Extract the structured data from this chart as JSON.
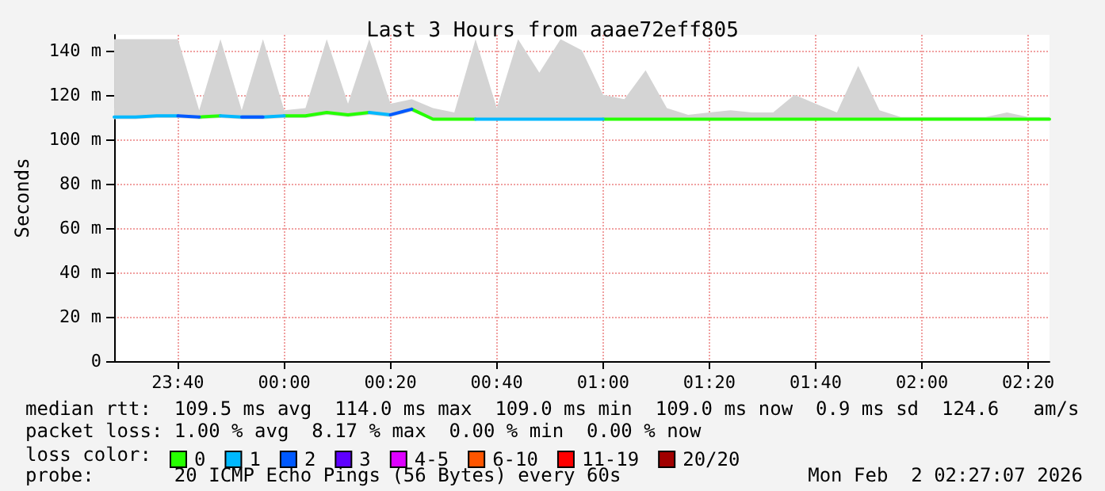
{
  "chart_data": {
    "type": "line",
    "title": "Last 3 Hours from aaae72eff805",
    "ylabel": "Seconds",
    "legend_title": "loss color:",
    "legend": "bottom",
    "grid": true,
    "marker": "none",
    "line_style": "solid",
    "x": [
      "2026-02-01T23:28",
      "2026-02-01T23:32",
      "2026-02-01T23:36",
      "2026-02-01T23:40",
      "2026-02-01T23:44",
      "2026-02-01T23:48",
      "2026-02-01T23:52",
      "2026-02-01T23:56",
      "2026-02-02T00:00",
      "2026-02-02T00:04",
      "2026-02-02T00:08",
      "2026-02-02T00:12",
      "2026-02-02T00:16",
      "2026-02-02T00:20",
      "2026-02-02T00:24",
      "2026-02-02T00:28",
      "2026-02-02T00:32",
      "2026-02-02T00:36",
      "2026-02-02T00:40",
      "2026-02-02T00:44",
      "2026-02-02T00:48",
      "2026-02-02T00:52",
      "2026-02-02T00:56",
      "2026-02-02T01:00",
      "2026-02-02T01:04",
      "2026-02-02T01:08",
      "2026-02-02T01:12",
      "2026-02-02T01:16",
      "2026-02-02T01:20",
      "2026-02-02T01:24",
      "2026-02-02T01:28",
      "2026-02-02T01:32",
      "2026-02-02T01:36",
      "2026-02-02T01:40",
      "2026-02-02T01:44",
      "2026-02-02T01:48",
      "2026-02-02T01:52",
      "2026-02-02T01:56",
      "2026-02-02T02:00",
      "2026-02-02T02:04",
      "2026-02-02T02:08",
      "2026-02-02T02:12",
      "2026-02-02T02:16",
      "2026-02-02T02:20",
      "2026-02-02T02:24"
    ],
    "xlim": [
      "2026-02-01T23:28",
      "2026-02-02T02:24"
    ],
    "xticks": [
      {
        "value": "2026-02-01T23:40",
        "label": "23:40"
      },
      {
        "value": "2026-02-02T00:00",
        "label": "00:00"
      },
      {
        "value": "2026-02-02T00:20",
        "label": "00:20"
      },
      {
        "value": "2026-02-02T00:40",
        "label": "00:40"
      },
      {
        "value": "2026-02-02T01:00",
        "label": "01:00"
      },
      {
        "value": "2026-02-02T01:20",
        "label": "01:20"
      },
      {
        "value": "2026-02-02T01:40",
        "label": "01:40"
      },
      {
        "value": "2026-02-02T02:00",
        "label": "02:00"
      },
      {
        "value": "2026-02-02T02:20",
        "label": "02:20"
      }
    ],
    "ylim": [
      0,
      147
    ],
    "yticks": [
      {
        "value": 0,
        "label": "0"
      },
      {
        "value": 20,
        "label": "20 m"
      },
      {
        "value": 40,
        "label": "40 m"
      },
      {
        "value": 60,
        "label": "60 m"
      },
      {
        "value": 80,
        "label": "80 m"
      },
      {
        "value": 100,
        "label": "100 m"
      },
      {
        "value": 120,
        "label": "120 m"
      },
      {
        "value": 140,
        "label": "140 m"
      }
    ],
    "series": [
      {
        "name": "0",
        "color": "#26ff00",
        "values": [
          null,
          null,
          null,
          null,
          110,
          110.5,
          null,
          null,
          110.5,
          110.5,
          112,
          111,
          112,
          null,
          113.5,
          109,
          109,
          109,
          null,
          null,
          null,
          null,
          null,
          109,
          109,
          109,
          109,
          109,
          109,
          109,
          109,
          109,
          109,
          109,
          109,
          109,
          109,
          109,
          109,
          109,
          109,
          109,
          109,
          109,
          109
        ],
        "lower": [
          109,
          109,
          109.5,
          109.5,
          109,
          109.5,
          109,
          109,
          109.5,
          109.5,
          111,
          110,
          111,
          110,
          112.5,
          108.5,
          108.5,
          108.5,
          108.5,
          108.5,
          108.5,
          108.5,
          108.5,
          108.5,
          108.5,
          108.5,
          108.5,
          108.5,
          108.5,
          108.5,
          108.5,
          108.5,
          108.5,
          108.5,
          108.5,
          108.5,
          108.5,
          108.5,
          108.5,
          108.5,
          108.5,
          108.5,
          108.5,
          108.5,
          108.5
        ],
        "upper": [
          145,
          145,
          145,
          145,
          113,
          145,
          113,
          145,
          113,
          114,
          145,
          116,
          145,
          116,
          118,
          114,
          112,
          145,
          114,
          145,
          130,
          145,
          140,
          120,
          118,
          131,
          114,
          111,
          112,
          113,
          112,
          112,
          120,
          116,
          112,
          133,
          113,
          110,
          110,
          110,
          110,
          110,
          112,
          110,
          110
        ]
      },
      {
        "name": "1",
        "color": "#00b8ff",
        "values": [
          110,
          110,
          110.5,
          110.5,
          null,
          110.5,
          110,
          110,
          110.5,
          null,
          null,
          null,
          112,
          111,
          null,
          null,
          null,
          109,
          109,
          109,
          109,
          109,
          109,
          109,
          null,
          null,
          null,
          null,
          null,
          null,
          null,
          null,
          null,
          null,
          null,
          null,
          null,
          null,
          null,
          null,
          null,
          null,
          null,
          null,
          null
        ]
      },
      {
        "name": "2",
        "color": "#0059ff",
        "values": [
          null,
          null,
          null,
          110.5,
          110,
          null,
          110,
          110,
          null,
          null,
          null,
          null,
          null,
          111,
          113.5,
          null,
          null,
          null,
          null,
          null,
          null,
          null,
          null,
          null,
          null,
          null,
          null,
          null,
          null,
          null,
          null,
          null,
          null,
          null,
          null,
          null,
          null,
          null,
          null,
          null,
          null,
          null,
          null,
          null,
          null
        ]
      },
      {
        "name": "3",
        "color": "#5e00ff",
        "values": [
          null,
          null,
          null,
          null,
          null,
          null,
          null,
          null,
          null,
          null,
          null,
          null,
          null,
          null,
          null,
          null,
          null,
          null,
          null,
          null,
          null,
          null,
          null,
          null,
          null,
          null,
          null,
          null,
          null,
          null,
          null,
          null,
          null,
          null,
          null,
          null,
          null,
          null,
          null,
          null,
          null,
          null,
          null,
          null,
          null
        ]
      },
      {
        "name": "4-5",
        "color": "#dd00ff",
        "values": [
          null,
          null,
          null,
          null,
          null,
          null,
          null,
          null,
          null,
          null,
          null,
          null,
          null,
          null,
          null,
          null,
          null,
          null,
          null,
          null,
          null,
          null,
          null,
          null,
          null,
          null,
          null,
          null,
          null,
          null,
          null,
          null,
          null,
          null,
          null,
          null,
          null,
          null,
          null,
          null,
          null,
          null,
          null,
          null,
          null
        ]
      },
      {
        "name": "6-10",
        "color": "#ff5500",
        "values": [
          null,
          null,
          null,
          null,
          null,
          null,
          null,
          null,
          null,
          null,
          null,
          null,
          null,
          null,
          null,
          null,
          null,
          null,
          null,
          null,
          null,
          null,
          null,
          null,
          null,
          null,
          null,
          null,
          null,
          null,
          null,
          null,
          null,
          null,
          null,
          null,
          null,
          null,
          null,
          null,
          null,
          null,
          null,
          null,
          null
        ]
      },
      {
        "name": "11-19",
        "color": "#ff0000",
        "values": [
          null,
          null,
          null,
          null,
          null,
          null,
          null,
          null,
          null,
          null,
          null,
          null,
          null,
          null,
          null,
          null,
          null,
          null,
          null,
          null,
          null,
          null,
          null,
          null,
          null,
          null,
          null,
          null,
          null,
          null,
          null,
          null,
          null,
          null,
          null,
          null,
          null,
          null,
          null,
          null,
          null,
          null,
          null,
          null,
          null
        ]
      },
      {
        "name": "20/20",
        "color": "#a10000",
        "values": [
          null,
          null,
          null,
          null,
          null,
          null,
          null,
          null,
          null,
          null,
          null,
          null,
          null,
          null,
          null,
          null,
          null,
          null,
          null,
          null,
          null,
          null,
          null,
          null,
          null,
          null,
          null,
          null,
          null,
          null,
          null,
          null,
          null,
          null,
          null,
          null,
          null,
          null,
          null,
          null,
          null,
          null,
          null,
          null,
          null
        ]
      }
    ],
    "annotations": [
      "median rtt:  109.5 ms avg  114.0 ms max  109.0 ms min  109.0 ms now  0.9 ms sd  124.6   am/s",
      "packet loss: 1.00 % avg  8.17 % max  0.00 % min  0.00 % now",
      "probe:       20 ICMP Echo Pings (56 Bytes) every 60s",
      "Mon Feb  2 02:27:07 2026"
    ]
  }
}
